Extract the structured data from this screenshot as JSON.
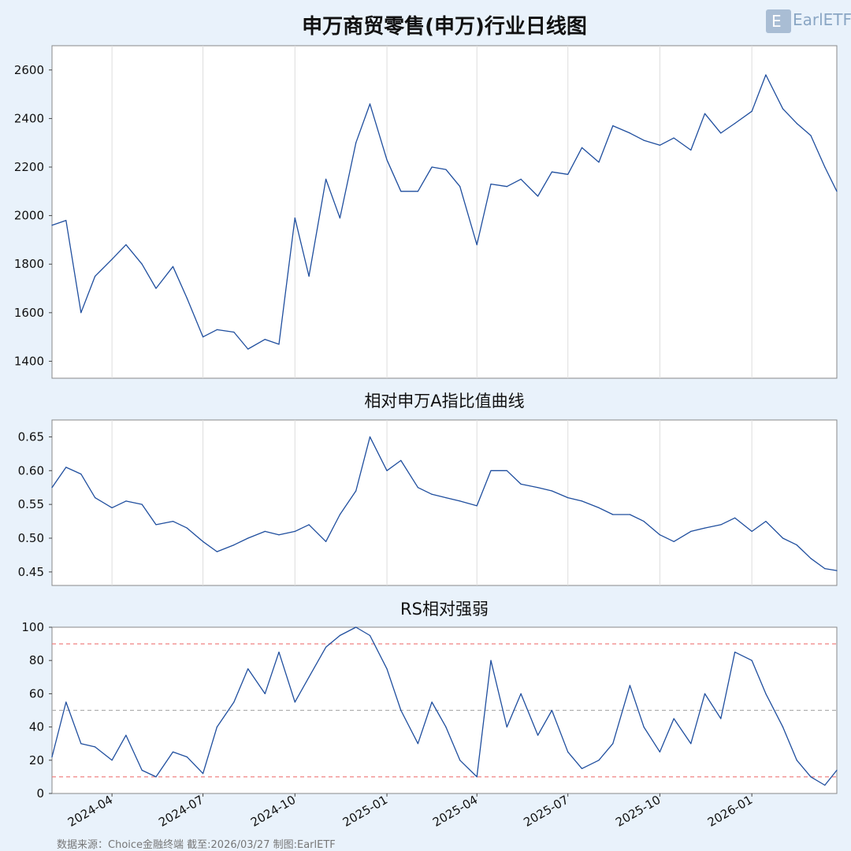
{
  "logo": {
    "text": "EarlETF"
  },
  "footer": {
    "text": "数据来源：Choice金融终端 截至:2026/03/27 制图:EarlETF"
  },
  "colors": {
    "line": "#1f4e9e",
    "band_red": "#f08080",
    "mid_gray": "#b0b0b0",
    "grid": "#dddddd",
    "panel_bg": "#ffffff",
    "page_bg": "#e9f2fb"
  },
  "x_ticks": [
    "2024-04",
    "2024-07",
    "2024-10",
    "2025-01",
    "2025-04",
    "2025-07",
    "2025-10",
    "2026-01"
  ],
  "chart_data": [
    {
      "type": "line",
      "title": "申万商贸零售(申万)行业日线图",
      "ylim": [
        1330,
        2700
      ],
      "yticks": [
        1400,
        1600,
        1800,
        2000,
        2200,
        2400,
        2600
      ],
      "grid": "vertical",
      "x": [
        "2024-02",
        "2024-02-15",
        "2024-03",
        "2024-03-15",
        "2024-04",
        "2024-04-15",
        "2024-05",
        "2024-05-15",
        "2024-06",
        "2024-06-15",
        "2024-07",
        "2024-07-15",
        "2024-08",
        "2024-08-15",
        "2024-09",
        "2024-09-15",
        "2024-10",
        "2024-10-15",
        "2024-11",
        "2024-11-15",
        "2024-12",
        "2024-12-15",
        "2025-01",
        "2025-01-15",
        "2025-02",
        "2025-02-15",
        "2025-03",
        "2025-03-15",
        "2025-04",
        "2025-04-15",
        "2025-05",
        "2025-05-15",
        "2025-06",
        "2025-06-15",
        "2025-07",
        "2025-07-15",
        "2025-08",
        "2025-08-15",
        "2025-09",
        "2025-09-15",
        "2025-10",
        "2025-10-15",
        "2025-11",
        "2025-11-15",
        "2025-12",
        "2025-12-15",
        "2026-01",
        "2026-01-15",
        "2026-02",
        "2026-02-15",
        "2026-03",
        "2026-03-15",
        "2026-03-27"
      ],
      "series": [
        {
          "values": [
            1960,
            1980,
            1600,
            1750,
            1820,
            1880,
            1800,
            1700,
            1790,
            1660,
            1500,
            1530,
            1520,
            1450,
            1490,
            1470,
            1990,
            1750,
            2150,
            1990,
            2300,
            2460,
            2230,
            2100,
            2100,
            2200,
            2190,
            2120,
            1880,
            2130,
            2120,
            2150,
            2080,
            2180,
            2170,
            2280,
            2220,
            2370,
            2340,
            2310,
            2290,
            2320,
            2270,
            2420,
            2340,
            2380,
            2430,
            2580,
            2440,
            2380,
            2330,
            2200,
            2100
          ]
        }
      ]
    },
    {
      "type": "line",
      "title": "相对申万A指比值曲线",
      "ylim": [
        0.43,
        0.675
      ],
      "yticks": [
        0.45,
        0.5,
        0.55,
        0.6,
        0.65
      ],
      "grid": "vertical",
      "x": [
        "2024-02",
        "2024-02-15",
        "2024-03",
        "2024-03-15",
        "2024-04",
        "2024-04-15",
        "2024-05",
        "2024-05-15",
        "2024-06",
        "2024-06-15",
        "2024-07",
        "2024-07-15",
        "2024-08",
        "2024-08-15",
        "2024-09",
        "2024-09-15",
        "2024-10",
        "2024-10-15",
        "2024-11",
        "2024-11-15",
        "2024-12",
        "2024-12-15",
        "2025-01",
        "2025-01-15",
        "2025-02",
        "2025-02-15",
        "2025-03",
        "2025-03-15",
        "2025-04",
        "2025-04-15",
        "2025-05",
        "2025-05-15",
        "2025-06",
        "2025-06-15",
        "2025-07",
        "2025-07-15",
        "2025-08",
        "2025-08-15",
        "2025-09",
        "2025-09-15",
        "2025-10",
        "2025-10-15",
        "2025-11",
        "2025-11-15",
        "2025-12",
        "2025-12-15",
        "2026-01",
        "2026-01-15",
        "2026-02",
        "2026-02-15",
        "2026-03",
        "2026-03-15",
        "2026-03-27"
      ],
      "series": [
        {
          "values": [
            0.575,
            0.605,
            0.595,
            0.56,
            0.545,
            0.555,
            0.55,
            0.52,
            0.525,
            0.515,
            0.495,
            0.48,
            0.49,
            0.5,
            0.51,
            0.505,
            0.51,
            0.52,
            0.495,
            0.535,
            0.57,
            0.65,
            0.6,
            0.615,
            0.575,
            0.565,
            0.56,
            0.555,
            0.548,
            0.6,
            0.6,
            0.58,
            0.575,
            0.57,
            0.56,
            0.555,
            0.545,
            0.535,
            0.535,
            0.525,
            0.505,
            0.495,
            0.51,
            0.515,
            0.52,
            0.53,
            0.51,
            0.525,
            0.5,
            0.49,
            0.47,
            0.455,
            0.452
          ]
        }
      ]
    },
    {
      "type": "line",
      "title": "RS相对强弱",
      "ylim": [
        0,
        100
      ],
      "yticks": [
        0,
        20,
        40,
        60,
        80,
        100
      ],
      "grid": "none",
      "hlines": [
        {
          "y": 90,
          "style": "dashed",
          "color": "#f08080"
        },
        {
          "y": 50,
          "style": "dashed",
          "color": "#b0b0b0"
        },
        {
          "y": 10,
          "style": "dashed",
          "color": "#f08080"
        }
      ],
      "x": [
        "2024-02",
        "2024-02-15",
        "2024-03",
        "2024-03-15",
        "2024-04",
        "2024-04-15",
        "2024-05",
        "2024-05-15",
        "2024-06",
        "2024-06-15",
        "2024-07",
        "2024-07-15",
        "2024-08",
        "2024-08-15",
        "2024-09",
        "2024-09-15",
        "2024-10",
        "2024-10-15",
        "2024-11",
        "2024-11-15",
        "2024-12",
        "2024-12-15",
        "2025-01",
        "2025-01-15",
        "2025-02",
        "2025-02-15",
        "2025-03",
        "2025-03-15",
        "2025-04",
        "2025-04-15",
        "2025-05",
        "2025-05-15",
        "2025-06",
        "2025-06-15",
        "2025-07",
        "2025-07-15",
        "2025-08",
        "2025-08-15",
        "2025-09",
        "2025-09-15",
        "2025-10",
        "2025-10-15",
        "2025-11",
        "2025-11-15",
        "2025-12",
        "2025-12-15",
        "2026-01",
        "2026-01-15",
        "2026-02",
        "2026-02-15",
        "2026-03",
        "2026-03-15",
        "2026-03-27"
      ],
      "series": [
        {
          "values": [
            22,
            55,
            30,
            28,
            20,
            35,
            14,
            10,
            25,
            22,
            12,
            40,
            55,
            75,
            60,
            85,
            55,
            70,
            88,
            95,
            100,
            95,
            75,
            50,
            30,
            55,
            40,
            20,
            10,
            80,
            40,
            60,
            35,
            50,
            25,
            15,
            20,
            30,
            65,
            40,
            25,
            45,
            30,
            60,
            45,
            85,
            80,
            60,
            40,
            20,
            10,
            5,
            14
          ]
        }
      ]
    }
  ]
}
